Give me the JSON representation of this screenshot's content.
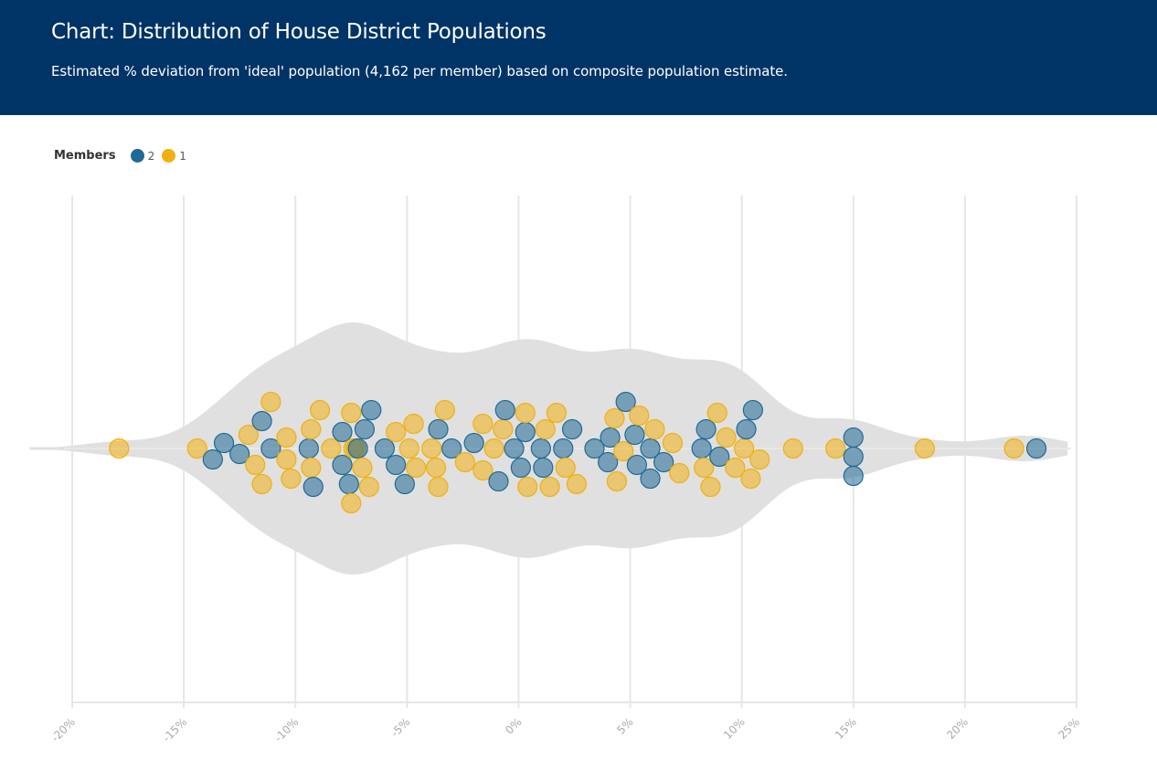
{
  "header": {
    "title": "Chart: Distribution of House District Populations",
    "subtitle": "Estimated % deviation from 'ideal' population (4,162 per member) based on composite population estimate."
  },
  "legend": {
    "title": "Members",
    "items": [
      {
        "label": "2",
        "color": "#1f6a96"
      },
      {
        "label": "1",
        "color": "#f0b012"
      }
    ]
  },
  "chart_data": {
    "type": "scatter",
    "subtype": "beeswarm-violin",
    "title": "Chart: Distribution of House District Populations",
    "subtitle": "Estimated % deviation from 'ideal' population (4,162 per member) based on composite population estimate.",
    "xlabel": "",
    "ylabel": "",
    "xlim": [
      -20,
      25
    ],
    "x_ticks": [
      "-20%",
      "-15%",
      "-10%",
      "-5%",
      "0%",
      "5%",
      "10%",
      "15%",
      "20%",
      "25%"
    ],
    "x_tick_values": [
      -20,
      -15,
      -10,
      -5,
      0,
      5,
      10,
      15,
      20,
      25
    ],
    "grid": true,
    "legend_position": "top-left",
    "series": [
      {
        "name": "2",
        "color": "#1f6a96",
        "values": [
          -13.7,
          -13.2,
          -12.5,
          -11.5,
          -11.1,
          -9.4,
          -9.2,
          -7.9,
          -7.9,
          -7.6,
          -7.2,
          -6.9,
          -6.6,
          -6.0,
          -5.5,
          -5.1,
          -3.6,
          -3.0,
          -2.0,
          -0.9,
          -0.6,
          -0.2,
          0.1,
          0.3,
          1.0,
          1.1,
          2.0,
          2.4,
          3.4,
          4.0,
          4.1,
          4.8,
          5.2,
          5.3,
          5.9,
          5.9,
          6.5,
          8.2,
          8.4,
          9.0,
          10.2,
          10.5,
          15.0,
          15.0,
          15.0,
          23.2
        ]
      },
      {
        "name": "1",
        "color": "#f0b012",
        "values": [
          -17.9,
          -14.4,
          -12.1,
          -11.8,
          -11.5,
          -11.1,
          -10.4,
          -10.2,
          -10.4,
          -9.3,
          -9.3,
          -8.9,
          -8.4,
          -7.5,
          -7.4,
          -7.3,
          -7.5,
          -7.0,
          -6.7,
          -5.5,
          -4.9,
          -4.7,
          -4.6,
          -3.9,
          -3.7,
          -3.6,
          -3.3,
          -2.4,
          -1.6,
          -1.6,
          -1.1,
          -0.7,
          0.3,
          0.4,
          1.2,
          1.4,
          1.7,
          2.1,
          2.6,
          4.3,
          4.4,
          4.7,
          5.4,
          6.1,
          6.9,
          7.2,
          8.3,
          8.6,
          8.9,
          9.3,
          9.7,
          10.1,
          10.4,
          10.8,
          12.3,
          14.2,
          18.2,
          22.2
        ]
      }
    ]
  }
}
